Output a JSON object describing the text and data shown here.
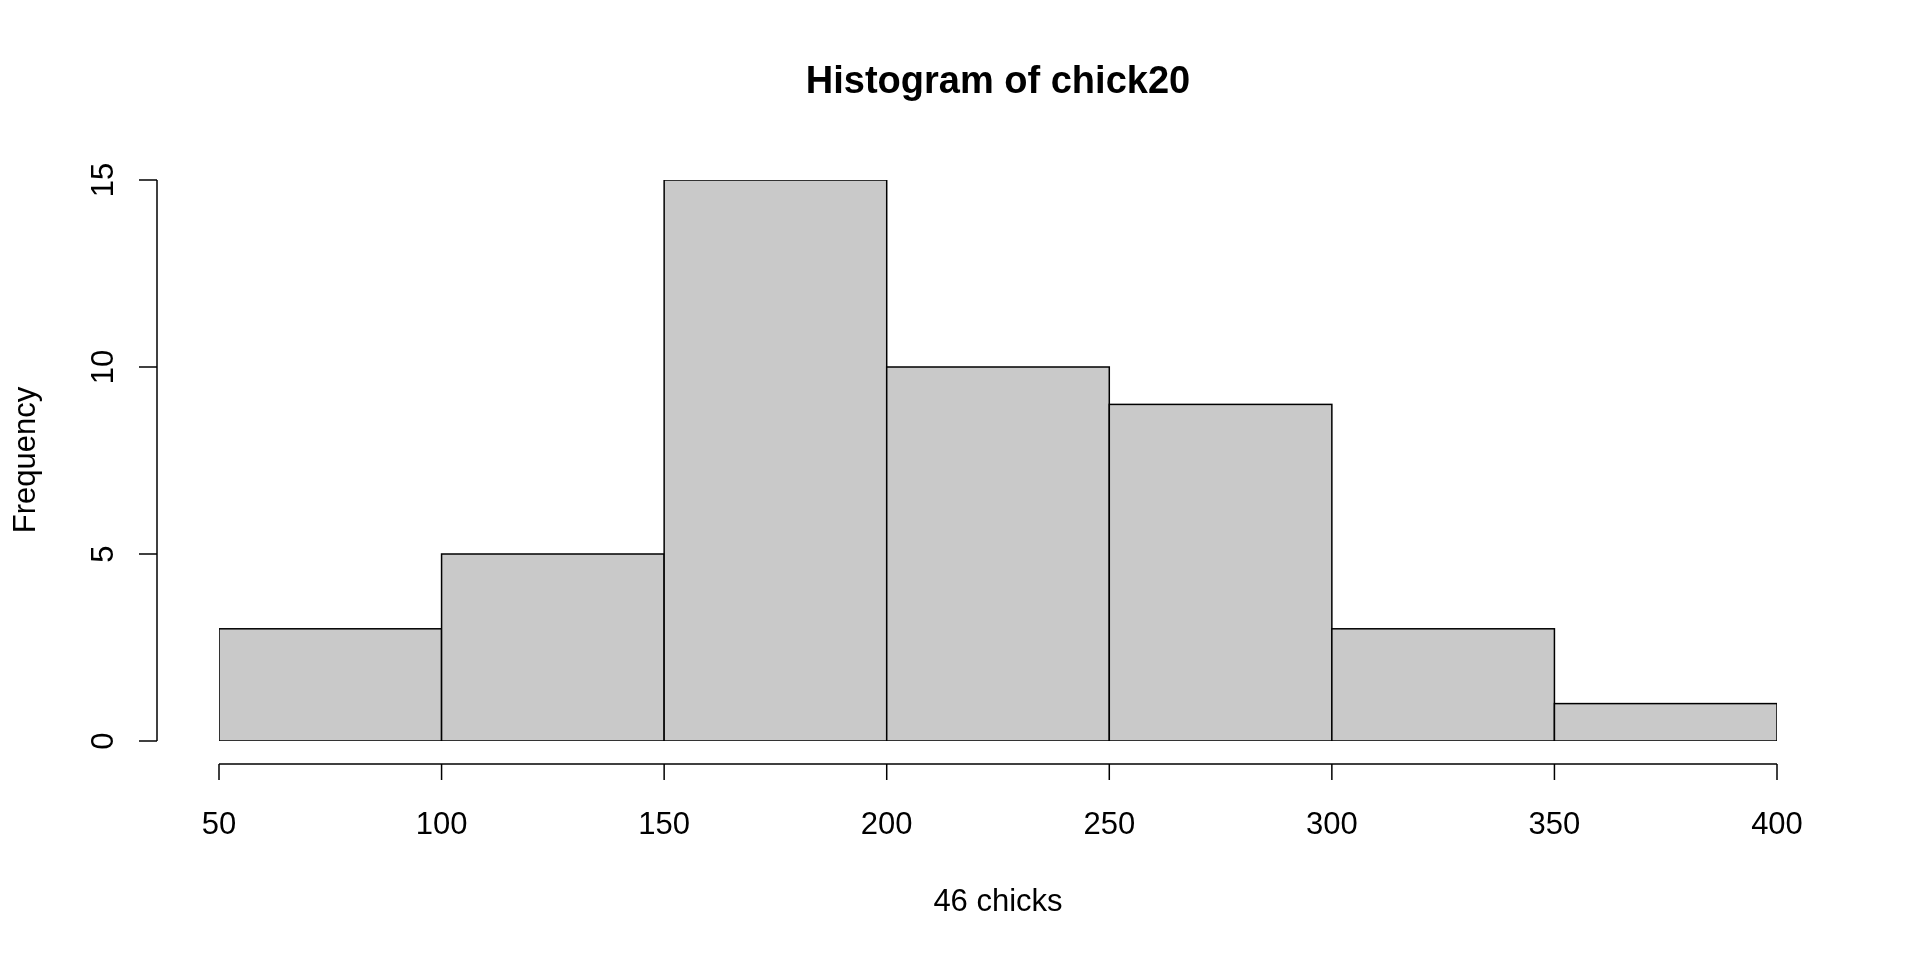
{
  "chart_data": {
    "type": "histogram",
    "title": "Histogram of chick20",
    "xlabel": "46 chicks",
    "ylabel": "Frequency",
    "bins": [
      50,
      100,
      150,
      200,
      250,
      300,
      350,
      400
    ],
    "values": [
      3,
      5,
      15,
      10,
      9,
      3,
      1
    ],
    "color": "#c9c9c9",
    "xlim": [
      50,
      400
    ],
    "ylim": [
      0,
      15
    ],
    "xticks": [
      50,
      100,
      150,
      200,
      250,
      300,
      350,
      400
    ],
    "yticks": [
      0,
      5,
      10,
      15
    ]
  }
}
